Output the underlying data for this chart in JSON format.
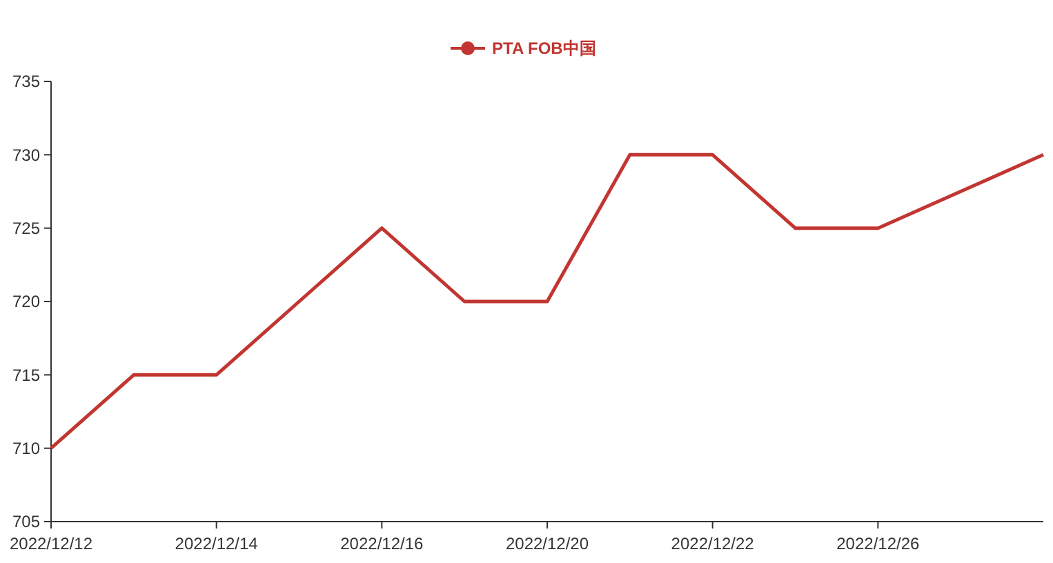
{
  "chart_data": {
    "type": "line",
    "categories": [
      "2022/12/12",
      null,
      "2022/12/14",
      null,
      "2022/12/16",
      null,
      "2022/12/20",
      null,
      "2022/12/22",
      null,
      "2022/12/26",
      null,
      null
    ],
    "series": [
      {
        "name": "PTA FOB中国",
        "color": "#c23531",
        "values": [
          710,
          715,
          715,
          720,
          725,
          720,
          720,
          730,
          730,
          725,
          725,
          727.5,
          730
        ]
      }
    ],
    "ylim": [
      705,
      735
    ],
    "yticks": [
      705,
      710,
      715,
      720,
      725,
      730,
      735
    ],
    "grid": false,
    "legend": "top",
    "marker": "none",
    "line_style": "solid"
  }
}
